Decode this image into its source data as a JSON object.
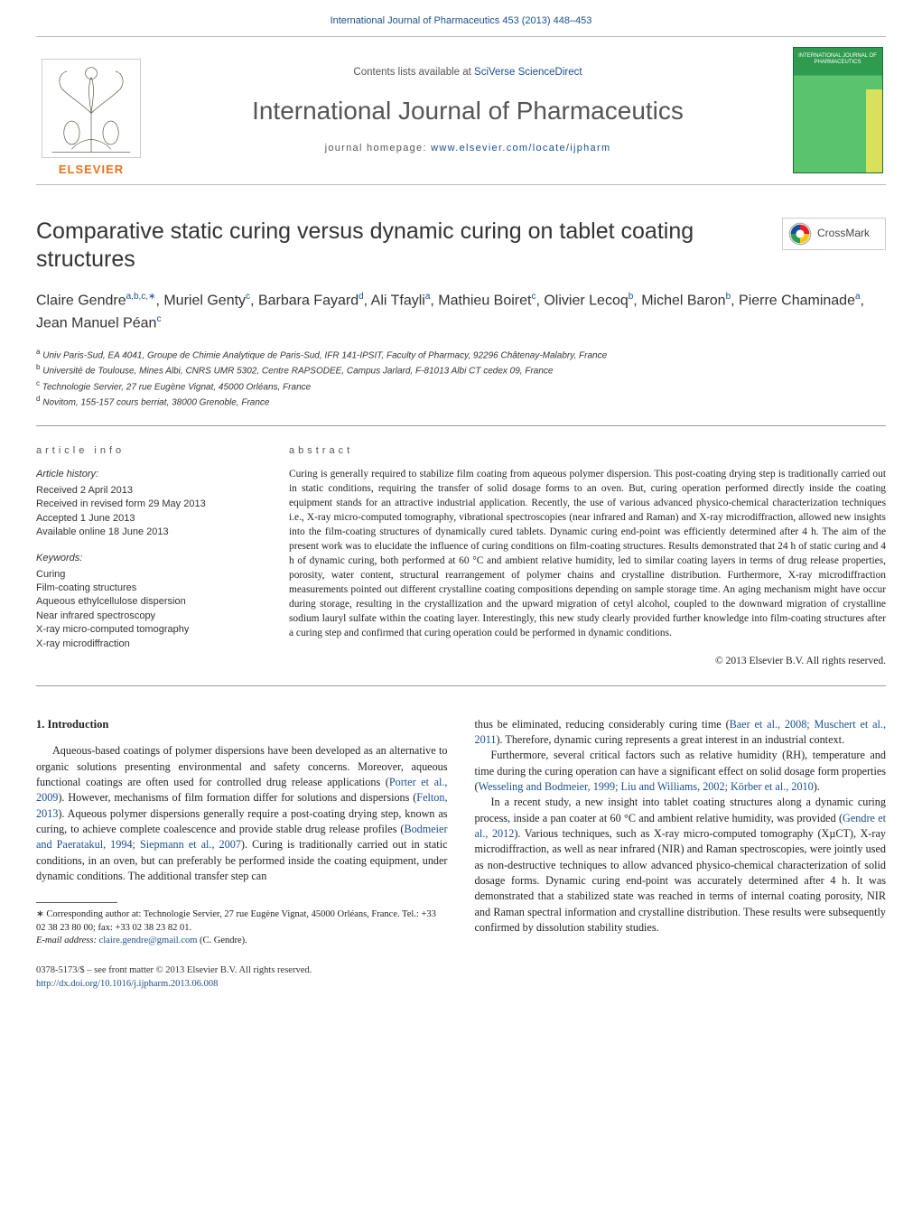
{
  "header": {
    "top_link_text": "International Journal of Pharmaceutics 453 (2013) 448–453",
    "contents_line_prefix": "Contents lists available at ",
    "contents_line_link": "SciVerse ScienceDirect",
    "journal_name": "International Journal of Pharmaceutics",
    "homepage_prefix": "journal homepage: ",
    "homepage_link": "www.elsevier.com/locate/ijpharm",
    "publisher_wordmark": "ELSEVIER",
    "cover_label": "INTERNATIONAL JOURNAL OF PHARMACEUTICS"
  },
  "crossmark_label": "CrossMark",
  "article": {
    "title": "Comparative static curing versus dynamic curing on tablet coating structures",
    "authors_html": "Claire Gendre<sup>a,b,c,∗</sup>, Muriel Genty<sup>c</sup>, Barbara Fayard<sup>d</sup>, Ali Tfayli<sup>a</sup>, Mathieu Boiret<sup>c</sup>, Olivier Lecoq<sup>b</sup>, Michel Baron<sup>b</sup>, Pierre Chaminade<sup>a</sup>, Jean Manuel Péan<sup>c</sup>",
    "affiliations": [
      "a Univ Paris-Sud, EA 4041, Groupe de Chimie Analytique de Paris-Sud, IFR 141-IPSIT, Faculty of Pharmacy, 92296 Châtenay-Malabry, France",
      "b Université de Toulouse, Mines Albi, CNRS UMR 5302, Centre RAPSODEE, Campus Jarlard, F-81013 Albi CT cedex 09, France",
      "c Technologie Servier, 27 rue Eugène Vignat, 45000 Orléans, France",
      "d Novitom, 155-157 cours berriat, 38000 Grenoble, France"
    ]
  },
  "info": {
    "heading": "article info",
    "history_heading": "Article history:",
    "history": [
      "Received 2 April 2013",
      "Received in revised form 29 May 2013",
      "Accepted 1 June 2013",
      "Available online 18 June 2013"
    ],
    "keywords_heading": "Keywords:",
    "keywords": [
      "Curing",
      "Film-coating structures",
      "Aqueous ethylcellulose dispersion",
      "Near infrared spectroscopy",
      "X-ray micro-computed tomography",
      "X-ray microdiffraction"
    ]
  },
  "abstract": {
    "heading": "abstract",
    "text": "Curing is generally required to stabilize film coating from aqueous polymer dispersion. This post-coating drying step is traditionally carried out in static conditions, requiring the transfer of solid dosage forms to an oven. But, curing operation performed directly inside the coating equipment stands for an attractive industrial application. Recently, the use of various advanced physico-chemical characterization techniques i.e., X-ray micro-computed tomography, vibrational spectroscopies (near infrared and Raman) and X-ray microdiffraction, allowed new insights into the film-coating structures of dynamically cured tablets. Dynamic curing end-point was efficiently determined after 4 h. The aim of the present work was to elucidate the influence of curing conditions on film-coating structures. Results demonstrated that 24 h of static curing and 4 h of dynamic curing, both performed at 60 °C and ambient relative humidity, led to similar coating layers in terms of drug release properties, porosity, water content, structural rearrangement of polymer chains and crystalline distribution. Furthermore, X-ray microdiffraction measurements pointed out different crystalline coating compositions depending on sample storage time. An aging mechanism might have occur during storage, resulting in the crystallization and the upward migration of cetyl alcohol, coupled to the downward migration of crystalline sodium lauryl sulfate within the coating layer. Interestingly, this new study clearly provided further knowledge into film-coating structures after a curing step and confirmed that curing operation could be performed in dynamic conditions.",
    "copyright": "© 2013 Elsevier B.V. All rights reserved."
  },
  "body": {
    "section1_heading": "1.  Introduction",
    "left_paras": [
      "Aqueous-based coatings of polymer dispersions have been developed as an alternative to organic solutions presenting environmental and safety concerns. Moreover, aqueous functional coatings are often used for controlled drug release applications (Porter et al., 2009). However, mechanisms of film formation differ for solutions and dispersions (Felton, 2013). Aqueous polymer dispersions generally require a post-coating drying step, known as curing, to achieve complete coalescence and provide stable drug release profiles (Bodmeier and Paeratakul, 1994; Siepmann et al., 2007). Curing is traditionally carried out in static conditions, in an oven, but can preferably be performed inside the coating equipment, under dynamic conditions. The additional transfer step can"
    ],
    "right_paras": [
      "thus be eliminated, reducing considerably curing time (Baer et al., 2008; Muschert et al., 2011). Therefore, dynamic curing represents a great interest in an industrial context.",
      "Furthermore, several critical factors such as relative humidity (RH), temperature and time during the curing operation can have a significant effect on solid dosage form properties (Wesseling and Bodmeier, 1999; Liu and Williams, 2002; Körber et al., 2010).",
      "In a recent study, a new insight into tablet coating structures along a dynamic curing process, inside a pan coater at 60 °C and ambient relative humidity, was provided (Gendre et al., 2012). Various techniques, such as X-ray micro-computed tomography (XµCT), X-ray microdiffraction, as well as near infrared (NIR) and Raman spectroscopies, were jointly used as non-destructive techniques to allow advanced physico-chemical characterization of solid dosage forms. Dynamic curing end-point was accurately determined after 4 h. It was demonstrated that a stabilized state was reached in terms of internal coating porosity, NIR and Raman spectral information and crystalline distribution. These results were subsequently confirmed by dissolution stability studies."
    ]
  },
  "footnote": {
    "corr": "∗ Corresponding author at: Technologie Servier, 27 rue Eugène Vignat, 45000 Orléans, France. Tel.: +33 02 38 23 80 00; fax: +33 02 38 23 82 01.",
    "email_label": "E-mail address: ",
    "email": "claire.gendre@gmail.com",
    "email_suffix": " (C. Gendre)."
  },
  "bottom": {
    "issn_line": "0378-5173/$ – see front matter © 2013 Elsevier B.V. All rights reserved.",
    "doi": "http://dx.doi.org/10.1016/j.ijpharm.2013.06.008"
  },
  "colors": {
    "link": "#1a4f8f",
    "text": "#222222",
    "accent_orange": "#e9711c",
    "rule": "#999999"
  }
}
